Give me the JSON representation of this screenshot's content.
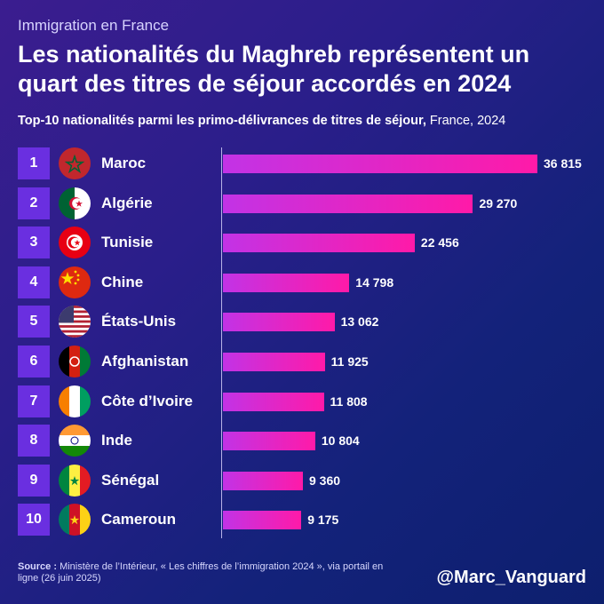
{
  "kicker": "Immigration en France",
  "title": "Les nationalités du Maghreb représentent un quart des titres de séjour accordés en 2024",
  "subtitle_bold": "Top-10 nationalités parmi les primo-délivrances de titres de séjour,",
  "subtitle_rest": " France, 2024",
  "source_label": "Source :",
  "source_text": " Ministère de l’Intérieur, « Les chiffres de l’immigration 2024 », via portail en ligne  (26 juin 2025)",
  "handle": "@Marc_Vanguard",
  "colors": {
    "bar_start": "#c233e6",
    "bar_end": "#ff1aa8",
    "rank_box": "#6a2fe0"
  },
  "chart_data": {
    "type": "bar",
    "orientation": "horizontal",
    "ranks": [
      "1",
      "2",
      "3",
      "4",
      "5",
      "6",
      "7",
      "8",
      "9",
      "10"
    ],
    "categories": [
      "Maroc",
      "Algérie",
      "Tunisie",
      "Chine",
      "États-Unis",
      "Afghanistan",
      "Côte d’Ivoire",
      "Inde",
      "Sénégal",
      "Cameroun"
    ],
    "flags": [
      "flag-morocco",
      "flag-algeria",
      "flag-tunisia",
      "flag-china",
      "flag-usa",
      "flag-afghanistan",
      "flag-ivory-coast",
      "flag-india",
      "flag-senegal",
      "flag-cameroon"
    ],
    "values": [
      36815,
      29270,
      22456,
      14798,
      13062,
      11925,
      11808,
      10804,
      9360,
      9175
    ],
    "value_labels": [
      "36 815",
      "29 270",
      "22 456",
      "14 798",
      "13 062",
      "11 925",
      "11 808",
      "10 804",
      "9 360",
      "9 175"
    ],
    "xlim": [
      0,
      36815
    ]
  }
}
